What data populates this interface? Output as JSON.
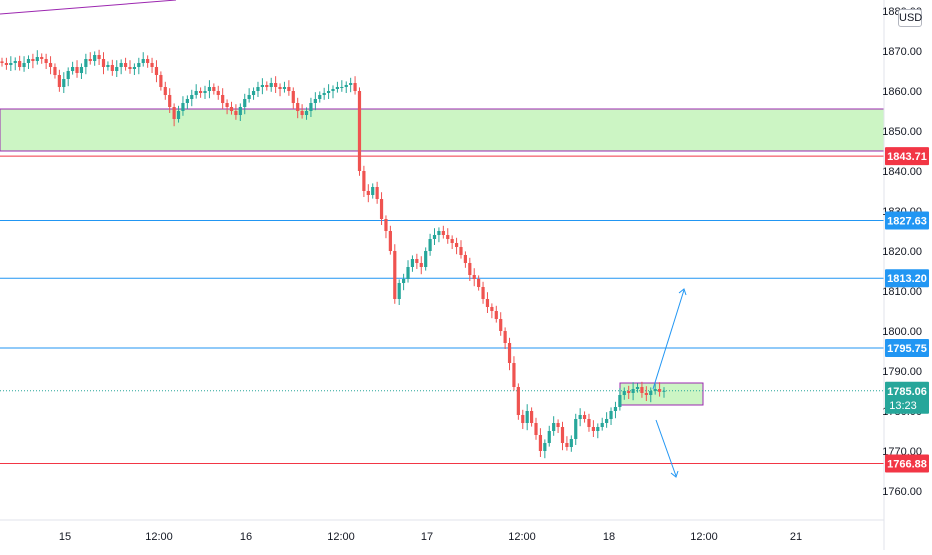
{
  "chart_data": {
    "type": "candlestick",
    "currency": "USD",
    "y_axis": {
      "min": 1756,
      "max": 1881,
      "ticks": [
        "1880.00",
        "1870.00",
        "1860.00",
        "1850.00",
        "1840.00",
        "1830.00",
        "1820.00",
        "1810.00",
        "1800.00",
        "1790.00",
        "1780.00",
        "1770.00",
        "1760.00"
      ]
    },
    "x_axis": {
      "labels": [
        "15",
        "12:00",
        "16",
        "12:00",
        "17",
        "12:00",
        "18",
        "12:00",
        "21"
      ]
    },
    "price_levels": [
      {
        "value": 1843.71,
        "label": "1843.71",
        "color": "#f23645",
        "style": "solid"
      },
      {
        "value": 1827.63,
        "label": "1827.63",
        "color": "#2196f3",
        "style": "solid"
      },
      {
        "value": 1813.2,
        "label": "1813.20",
        "color": "#2196f3",
        "style": "solid"
      },
      {
        "value": 1795.75,
        "label": "1795.75",
        "color": "#2196f3",
        "style": "solid"
      },
      {
        "value": 1766.88,
        "label": "1766.88",
        "color": "#f23645",
        "style": "solid"
      }
    ],
    "current_price": {
      "value": 1785.06,
      "label": "1785.06",
      "countdown": "13:23",
      "color": "#26a69a"
    },
    "zones": [
      {
        "from": 1845.0,
        "to": 1855.5,
        "fill": "#ccf5c4",
        "border": "#9c27b0"
      },
      {
        "from": 1781.5,
        "to": 1787.0,
        "fill": "#ccf5c4",
        "border": "#9c27b0"
      }
    ],
    "candles_close": [
      1867,
      1866.5,
      1867,
      1867.5,
      1866,
      1867,
      1868,
      1867.5,
      1868.5,
      1868,
      1867,
      1866,
      1864,
      1861,
      1863,
      1865,
      1866,
      1864.5,
      1866,
      1868,
      1867.5,
      1869,
      1868,
      1866,
      1866.5,
      1865,
      1866,
      1867,
      1866,
      1865.5,
      1866,
      1867,
      1868,
      1867,
      1866,
      1864,
      1861,
      1859,
      1856,
      1853,
      1855,
      1857,
      1858,
      1859,
      1860,
      1859.5,
      1860,
      1861,
      1860,
      1859,
      1857,
      1856,
      1855,
      1854,
      1856,
      1858,
      1859,
      1860,
      1861,
      1861.5,
      1861,
      1862,
      1861,
      1860.5,
      1861,
      1860,
      1857,
      1855,
      1854,
      1855,
      1857,
      1858,
      1859,
      1859.5,
      1860,
      1860.5,
      1861,
      1861,
      1861.5,
      1862,
      1860,
      1840,
      1835,
      1834,
      1836,
      1833,
      1828,
      1825,
      1820,
      1808,
      1812,
      1813,
      1816,
      1818,
      1817,
      1816,
      1820,
      1823,
      1824,
      1825,
      1824,
      1823,
      1822,
      1821,
      1819,
      1817,
      1814,
      1813,
      1811,
      1808,
      1806,
      1805,
      1803,
      1800,
      1797,
      1792,
      1786,
      1779,
      1777,
      1780,
      1777,
      1774,
      1770,
      1772,
      1775,
      1777,
      1776,
      1772,
      1771,
      1773,
      1778,
      1779,
      1778,
      1776,
      1775,
      1776,
      1777,
      1778,
      1780,
      1781,
      1784,
      1785,
      1784.5,
      1785.5,
      1786,
      1784.5,
      1784,
      1785,
      1785.5,
      1784.8,
      1785.06
    ]
  }
}
